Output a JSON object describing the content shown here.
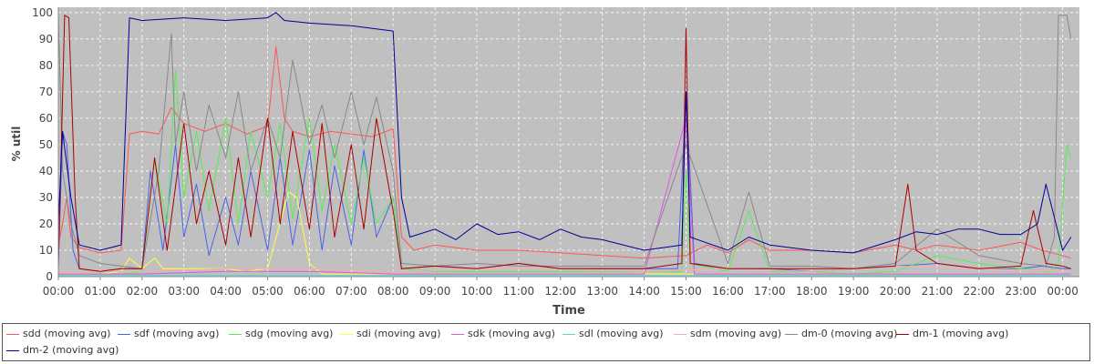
{
  "chart_data": {
    "type": "line",
    "title": "",
    "xlabel": "Time",
    "ylabel": "% util",
    "ylim": [
      0,
      102
    ],
    "yticks": [
      0,
      10,
      20,
      30,
      40,
      50,
      60,
      70,
      80,
      90,
      100
    ],
    "xlim_hours": [
      0,
      24.4
    ],
    "xticks": [
      "00:00",
      "01:00",
      "02:00",
      "03:00",
      "04:00",
      "05:00",
      "06:00",
      "07:00",
      "08:00",
      "09:00",
      "10:00",
      "11:00",
      "12:00",
      "13:00",
      "14:00",
      "15:00",
      "16:00",
      "17:00",
      "18:00",
      "19:00",
      "20:00",
      "21:00",
      "22:00",
      "23:00",
      "00:00"
    ],
    "grid": true,
    "legend_position": "bottom",
    "series": [
      {
        "name": "sdd (moving avg)",
        "color": "#ff5555",
        "x": [
          0.0,
          0.1,
          0.2,
          0.3,
          0.5,
          1.0,
          1.5,
          1.7,
          2.0,
          2.4,
          2.7,
          3.0,
          3.5,
          4.0,
          4.5,
          5.0,
          5.2,
          5.4,
          5.6,
          6.0,
          6.5,
          7.0,
          7.5,
          8.0,
          8.2,
          8.5,
          9.0,
          10.0,
          11.0,
          12.0,
          13.0,
          14.0,
          15.0,
          15.5,
          16.0,
          16.5,
          17.0,
          18.0,
          19.0,
          20.0,
          20.5,
          21.0,
          22.0,
          23.0,
          23.5,
          24.0,
          24.2
        ],
        "y": [
          12,
          20,
          30,
          15,
          11,
          9,
          10,
          54,
          55,
          54,
          64,
          58,
          55,
          58,
          54,
          57,
          87,
          60,
          55,
          53,
          55,
          54,
          53,
          56,
          15,
          10,
          12,
          10,
          10,
          9,
          8,
          7,
          8,
          12,
          9,
          14,
          10,
          10,
          9,
          12,
          10,
          12,
          10,
          13,
          10,
          8,
          7
        ]
      },
      {
        "name": "sdf (moving avg)",
        "color": "#4a64e8",
        "x": [
          0.0,
          0.1,
          0.2,
          0.35,
          0.5,
          1.0,
          1.5,
          2.0,
          2.2,
          2.5,
          2.8,
          3.0,
          3.3,
          3.6,
          4.0,
          4.3,
          4.6,
          5.0,
          5.3,
          5.6,
          6.0,
          6.3,
          6.6,
          7.0,
          7.3,
          7.6,
          8.0,
          8.2,
          9.0,
          10.0,
          11.0,
          12.0,
          13.0,
          14.0,
          14.8,
          15.0,
          15.2,
          16.0,
          17.0,
          18.0,
          19.0,
          20.0,
          21.0,
          22.0,
          23.0,
          23.5,
          24.0,
          24.2
        ],
        "y": [
          3,
          55,
          50,
          10,
          3,
          2,
          3,
          3,
          40,
          10,
          50,
          15,
          35,
          8,
          30,
          12,
          40,
          10,
          45,
          12,
          48,
          10,
          42,
          12,
          48,
          15,
          30,
          3,
          4,
          3,
          5,
          3,
          3,
          3,
          3,
          70,
          5,
          3,
          3,
          2,
          3,
          4,
          5,
          3,
          3,
          4,
          3,
          3
        ]
      },
      {
        "name": "sdg (moving avg)",
        "color": "#55ee55",
        "x": [
          0.0,
          0.5,
          1.0,
          1.5,
          2.0,
          2.3,
          2.6,
          2.8,
          3.0,
          3.3,
          3.6,
          4.0,
          4.3,
          4.6,
          5.0,
          5.3,
          5.6,
          6.0,
          6.3,
          6.6,
          7.0,
          7.3,
          7.6,
          8.0,
          8.2,
          9.0,
          10.0,
          11.0,
          12.0,
          13.0,
          14.0,
          14.9,
          15.0,
          15.1,
          16.0,
          16.5,
          17.0,
          18.0,
          19.0,
          20.0,
          21.0,
          22.0,
          23.0,
          23.7,
          23.9,
          24.1,
          24.2
        ],
        "y": [
          1,
          1,
          1,
          1,
          2,
          45,
          20,
          78,
          30,
          55,
          25,
          60,
          20,
          55,
          30,
          58,
          22,
          60,
          25,
          50,
          20,
          45,
          20,
          30,
          3,
          2,
          2,
          2,
          2,
          2,
          2,
          2,
          40,
          5,
          2,
          25,
          2,
          2,
          1,
          2,
          8,
          5,
          3,
          2,
          5,
          50,
          45
        ]
      },
      {
        "name": "sdi (moving avg)",
        "color": "#ffff44",
        "x": [
          0.0,
          1.0,
          1.5,
          1.7,
          2.0,
          2.3,
          2.5,
          3.0,
          4.0,
          4.5,
          5.0,
          5.5,
          5.7,
          6.0,
          6.3,
          7.0,
          8.0,
          8.3,
          9.0,
          12.0,
          15.0,
          18.0,
          21.0,
          24.2
        ],
        "y": [
          1,
          1,
          2,
          7,
          3,
          7,
          3,
          3,
          3,
          2,
          3,
          32,
          30,
          5,
          1,
          1,
          1,
          1,
          1,
          1,
          1,
          1,
          1,
          1
        ]
      },
      {
        "name": "sdk (moving avg)",
        "color": "#e055e0",
        "x": [
          0.0,
          2.0,
          4.0,
          6.0,
          8.0,
          10.0,
          12.0,
          14.0,
          15.0,
          15.2,
          16.0,
          18.0,
          20.0,
          22.0,
          24.2
        ],
        "y": [
          1,
          1,
          2,
          2,
          1,
          1,
          1,
          1,
          60,
          1,
          1,
          1,
          1,
          1,
          1
        ]
      },
      {
        "name": "sdl (moving avg)",
        "color": "#55dddd",
        "x": [
          0.0,
          4.0,
          8.0,
          12.0,
          16.0,
          20.0,
          24.2
        ],
        "y": [
          0.5,
          0.5,
          0.5,
          0.5,
          0.5,
          0.5,
          0.5
        ]
      },
      {
        "name": "sdm (moving avg)",
        "color": "#ffaaaa",
        "x": [
          0.0,
          2.0,
          4.0,
          6.0,
          8.0,
          10.0,
          12.0,
          14.0,
          16.0,
          18.0,
          20.0,
          22.0,
          24.2
        ],
        "y": [
          2,
          2,
          3,
          3,
          2,
          3,
          3,
          2,
          3,
          2,
          4,
          3,
          2
        ]
      },
      {
        "name": "dm-0 (moving avg)",
        "color": "#888888",
        "x": [
          0.0,
          0.1,
          0.3,
          0.5,
          1.0,
          1.5,
          2.0,
          2.4,
          2.7,
          2.8,
          3.0,
          3.3,
          3.6,
          4.0,
          4.3,
          4.6,
          5.0,
          5.3,
          5.6,
          6.0,
          6.3,
          6.6,
          7.0,
          7.3,
          7.6,
          8.0,
          8.2,
          9.0,
          10.0,
          11.0,
          12.0,
          13.0,
          14.0,
          15.0,
          16.0,
          16.5,
          17.0,
          18.0,
          19.0,
          20.0,
          21.0,
          22.0,
          23.0,
          23.6,
          23.8,
          23.9,
          24.1,
          24.2
        ],
        "y": [
          99,
          40,
          20,
          8,
          5,
          4,
          3,
          40,
          92,
          50,
          70,
          40,
          65,
          45,
          70,
          40,
          60,
          45,
          82,
          50,
          65,
          45,
          70,
          50,
          68,
          40,
          5,
          4,
          5,
          4,
          4,
          4,
          4,
          50,
          5,
          32,
          4,
          4,
          3,
          5,
          18,
          8,
          5,
          4,
          15,
          99,
          99,
          90
        ]
      },
      {
        "name": "dm-1 (moving avg)",
        "color": "#aa0000",
        "x": [
          0.0,
          0.15,
          0.25,
          0.4,
          0.5,
          1.0,
          1.5,
          2.0,
          2.3,
          2.6,
          3.0,
          3.3,
          3.6,
          4.0,
          4.3,
          4.6,
          5.0,
          5.3,
          5.6,
          6.0,
          6.3,
          6.6,
          7.0,
          7.3,
          7.6,
          8.0,
          8.2,
          9.0,
          10.0,
          11.0,
          12.0,
          13.0,
          14.0,
          14.9,
          15.0,
          15.1,
          16.0,
          17.0,
          18.0,
          19.0,
          20.0,
          20.3,
          20.5,
          21.0,
          22.0,
          23.0,
          23.3,
          23.6,
          24.0,
          24.2
        ],
        "y": [
          5,
          99,
          98,
          30,
          3,
          2,
          3,
          3,
          45,
          10,
          58,
          20,
          40,
          12,
          45,
          15,
          60,
          20,
          55,
          18,
          58,
          15,
          50,
          18,
          60,
          25,
          3,
          4,
          3,
          5,
          3,
          3,
          3,
          5,
          94,
          5,
          3,
          3,
          3,
          3,
          4,
          35,
          10,
          5,
          3,
          4,
          25,
          5,
          4,
          3
        ]
      },
      {
        "name": "dm-2 (moving avg)",
        "color": "#000099",
        "x": [
          0.0,
          0.1,
          0.3,
          0.5,
          1.0,
          1.5,
          1.7,
          2.0,
          3.0,
          4.0,
          5.0,
          5.2,
          5.4,
          6.0,
          7.0,
          8.0,
          8.2,
          8.4,
          9.0,
          9.5,
          10.0,
          10.5,
          11.0,
          11.5,
          12.0,
          12.5,
          13.0,
          14.0,
          14.9,
          15.0,
          15.1,
          16.0,
          16.5,
          17.0,
          18.0,
          19.0,
          20.0,
          20.5,
          21.0,
          21.5,
          22.0,
          22.5,
          23.0,
          23.4,
          23.6,
          24.0,
          24.2
        ],
        "y": [
          20,
          55,
          30,
          12,
          10,
          12,
          98,
          97,
          98,
          97,
          98,
          100,
          97,
          96,
          95,
          93,
          30,
          15,
          18,
          14,
          20,
          16,
          17,
          14,
          18,
          15,
          14,
          10,
          12,
          70,
          15,
          10,
          15,
          12,
          10,
          9,
          14,
          17,
          16,
          18,
          18,
          16,
          16,
          20,
          35,
          10,
          15
        ]
      }
    ]
  }
}
